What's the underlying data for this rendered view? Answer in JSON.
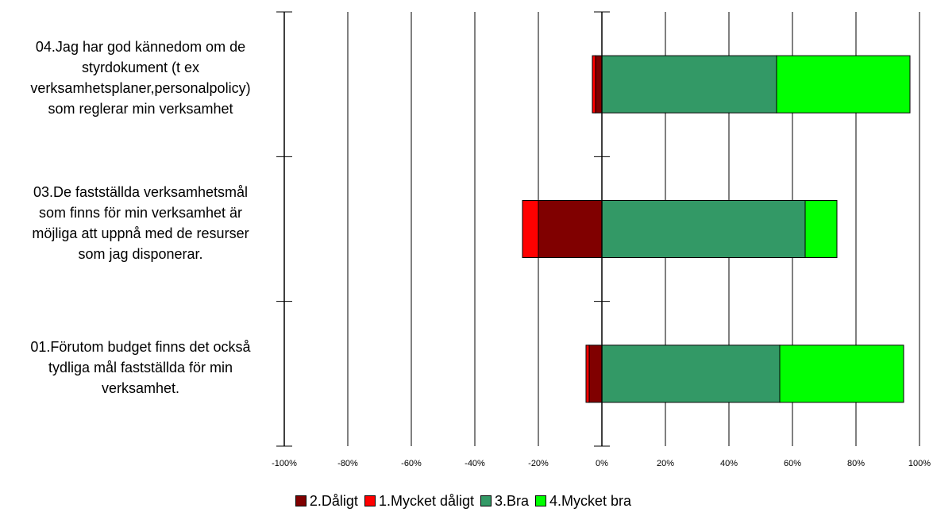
{
  "chart_data": {
    "type": "bar",
    "orientation": "horizontal",
    "stacked": "diverging",
    "categories": [
      "04.Jag har god kännedom om de styrdokument (t ex verksamhetsplaner,personalpolicy) som reglerar min verksamhet",
      "03.De fastställda verksamhetsmål som finns för min verksamhet är möjliga att uppnå med de resurser som jag disponerar.",
      "01.Förutom budget finns det också tydliga mål fastställda för min verksamhet."
    ],
    "category_lines": [
      [
        "04.Jag har god kännedom om de",
        "styrdokument (t ex",
        "verksamhetsplaner,personalpolicy)",
        "som reglerar min verksamhet"
      ],
      [
        "03.De fastställda verksamhetsmål",
        "som finns för min verksamhet är",
        "möjliga att uppnå med de resurser",
        "som jag disponerar."
      ],
      [
        "01.Förutom budget finns det också",
        "tydliga mål fastställda för min",
        "verksamhet."
      ]
    ],
    "series": [
      {
        "name": "2.Dåligt",
        "color": "#800000",
        "values": [
          -2,
          -20,
          -4
        ]
      },
      {
        "name": "1.Mycket dåligt",
        "color": "#ff0000",
        "values": [
          -1,
          -5,
          -1
        ]
      },
      {
        "name": "3.Bra",
        "color": "#339966",
        "values": [
          55,
          64,
          56
        ]
      },
      {
        "name": "4.Mycket bra",
        "color": "#00ff00",
        "values": [
          42,
          10,
          39
        ]
      }
    ],
    "negative_stack_order": [
      "2.Dåligt",
      "1.Mycket dåligt"
    ],
    "positive_stack_order": [
      "3.Bra",
      "4.Mycket bra"
    ],
    "xlim": [
      -100,
      100
    ],
    "x_ticks": [
      -100,
      -80,
      -60,
      -40,
      -20,
      0,
      20,
      40,
      60,
      80,
      100
    ],
    "x_tick_labels": [
      "-100%",
      "-80%",
      "-60%",
      "-40%",
      "-20%",
      "0%",
      "20%",
      "40%",
      "60%",
      "80%",
      "100%"
    ],
    "grid": "vertical",
    "legend_position": "bottom",
    "title": "",
    "xlabel": "",
    "ylabel": ""
  }
}
